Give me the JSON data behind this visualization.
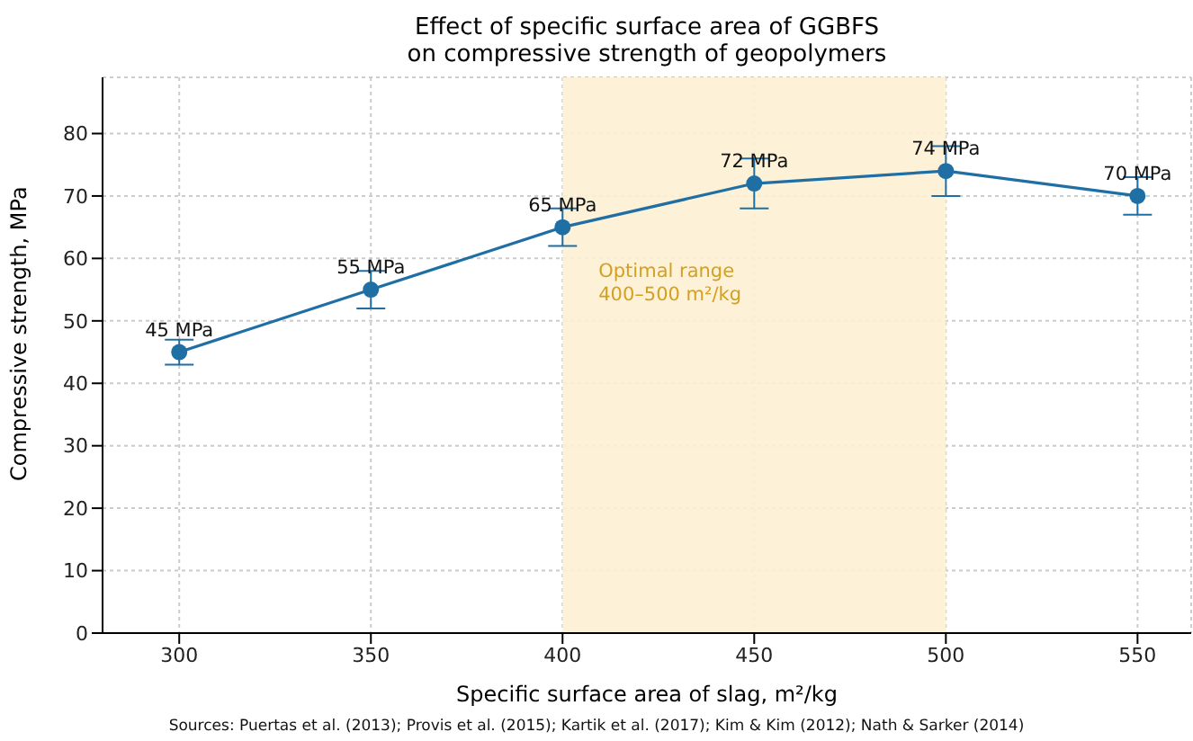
{
  "chart_data": {
    "type": "line",
    "title": "Effect of specific surface area of GGBFS\non compressive strength of geopolymers",
    "xlabel": "Specific surface area of slag, m²/kg",
    "ylabel": "Compressive strength, MPa",
    "x": [
      300,
      350,
      400,
      450,
      500,
      550
    ],
    "series": [
      {
        "color": "#1f6fa5",
        "values": [
          45,
          55,
          65,
          72,
          74,
          70
        ],
        "errors": [
          2,
          3,
          3,
          4,
          4,
          3
        ],
        "value_labels": [
          "45 MPa",
          "55 MPa",
          "65 MPa",
          "72 MPa",
          "74 MPa",
          "70 MPa"
        ]
      }
    ],
    "xlim": [
      280,
      564
    ],
    "xticks": [
      300,
      350,
      400,
      450,
      500,
      550
    ],
    "ylim": [
      0,
      89
    ],
    "yticks": [
      0,
      10,
      20,
      30,
      40,
      50,
      60,
      70,
      80
    ],
    "bands": [
      {
        "axis": "x",
        "from": 400,
        "to": 500,
        "label": "Optimal range\n400–500 m²/kg",
        "color": "#fdefd3"
      }
    ],
    "annotations": [
      "Sources: Puertas et al. (2013); Provis et al. (2015); Kartik et al. (2017); Kim & Kim (2012); Nath & Sarker (2014)"
    ],
    "grid": true,
    "marker": "circle",
    "line_style": "solid",
    "legend": false
  }
}
